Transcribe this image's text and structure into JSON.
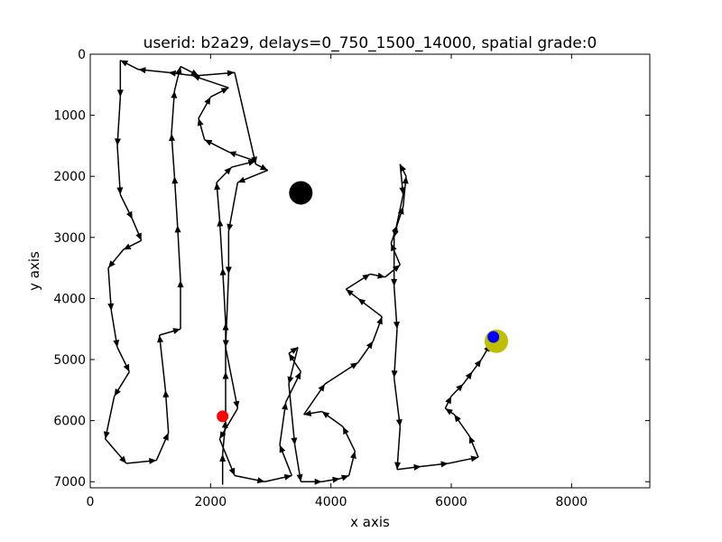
{
  "chart_data": {
    "type": "scatter",
    "title": "userid: b2a29, delays=0_750_1500_14000, spatial grade:0",
    "xlabel": "x axis",
    "ylabel": "y axis",
    "xlim": [
      0,
      9300
    ],
    "ylim": [
      0,
      7100
    ],
    "y_inverted": true,
    "grid": false,
    "x_ticks": [
      0,
      2000,
      4000,
      6000,
      8000
    ],
    "y_ticks": [
      0,
      1000,
      2000,
      3000,
      4000,
      5000,
      6000,
      7000
    ],
    "trajectory_color": "#000000",
    "trajectory": [
      [
        2200,
        7050
      ],
      [
        2200,
        6550
      ],
      [
        2250,
        6000
      ],
      [
        2250,
        5200
      ],
      [
        2250,
        4400
      ],
      [
        2200,
        3500
      ],
      [
        2150,
        2700
      ],
      [
        2100,
        2100
      ],
      [
        2350,
        1850
      ],
      [
        2750,
        1750
      ],
      [
        2300,
        1600
      ],
      [
        1900,
        1400
      ],
      [
        1800,
        1050
      ],
      [
        2000,
        700
      ],
      [
        2300,
        550
      ],
      [
        1700,
        350
      ],
      [
        1300,
        300
      ],
      [
        800,
        250
      ],
      [
        500,
        100
      ],
      [
        500,
        700
      ],
      [
        450,
        1500
      ],
      [
        500,
        2300
      ],
      [
        700,
        2700
      ],
      [
        850,
        3050
      ],
      [
        550,
        3200
      ],
      [
        300,
        3500
      ],
      [
        350,
        4200
      ],
      [
        450,
        4800
      ],
      [
        650,
        5200
      ],
      [
        400,
        5600
      ],
      [
        250,
        6300
      ],
      [
        600,
        6700
      ],
      [
        1100,
        6650
      ],
      [
        1300,
        6200
      ],
      [
        1250,
        5500
      ],
      [
        1150,
        4600
      ],
      [
        1500,
        4500
      ],
      [
        1500,
        3700
      ],
      [
        1450,
        2800
      ],
      [
        1400,
        2000
      ],
      [
        1350,
        1300
      ],
      [
        1400,
        600
      ],
      [
        1500,
        200
      ],
      [
        1800,
        350
      ],
      [
        2400,
        300
      ],
      [
        2750,
        1800
      ],
      [
        2950,
        1900
      ],
      [
        2450,
        2100
      ],
      [
        2300,
        2900
      ],
      [
        2300,
        3600
      ],
      [
        2250,
        4800
      ],
      [
        2450,
        5800
      ],
      [
        2150,
        6300
      ],
      [
        2400,
        6900
      ],
      [
        2900,
        7000
      ],
      [
        3350,
        6900
      ],
      [
        3150,
        6400
      ],
      [
        3250,
        5700
      ],
      [
        3500,
        5200
      ],
      [
        3300,
        4900
      ],
      [
        3450,
        4800
      ],
      [
        3300,
        5400
      ],
      [
        3400,
        6400
      ],
      [
        3500,
        7000
      ],
      [
        3850,
        7000
      ],
      [
        4150,
        6950
      ],
      [
        4300,
        6900
      ],
      [
        4400,
        6500
      ],
      [
        4200,
        6100
      ],
      [
        3850,
        5850
      ],
      [
        3550,
        5900
      ],
      [
        3900,
        5400
      ],
      [
        4450,
        5050
      ],
      [
        4700,
        4700
      ],
      [
        4850,
        4300
      ],
      [
        4450,
        4000
      ],
      [
        4250,
        3850
      ],
      [
        4650,
        3600
      ],
      [
        4900,
        3650
      ],
      [
        5150,
        3450
      ],
      [
        5000,
        3100
      ],
      [
        5100,
        2800
      ],
      [
        5200,
        2500
      ],
      [
        5250,
        2000
      ],
      [
        5150,
        1800
      ],
      [
        5200,
        2300
      ],
      [
        5050,
        3000
      ],
      [
        5050,
        3800
      ],
      [
        5100,
        4500
      ],
      [
        5050,
        5300
      ],
      [
        5150,
        6100
      ],
      [
        5100,
        6800
      ],
      [
        5500,
        6750
      ],
      [
        5950,
        6700
      ],
      [
        6450,
        6600
      ],
      [
        6300,
        6250
      ],
      [
        6050,
        5900
      ],
      [
        5900,
        5800
      ],
      [
        6000,
        5600
      ],
      [
        6200,
        5400
      ],
      [
        6350,
        5200
      ],
      [
        6500,
        5000
      ],
      [
        6650,
        4750
      ]
    ],
    "markers": [
      {
        "label": "start",
        "x": 2200,
        "y": 5930,
        "color": "#ff0000",
        "size": "small"
      },
      {
        "label": "end",
        "x": 6700,
        "y": 4630,
        "color": "#0000ff",
        "size": "small"
      },
      {
        "label": "target",
        "x": 6750,
        "y": 4700,
        "color": "#bfbf00",
        "size": "large"
      },
      {
        "label": "landmark",
        "x": 3500,
        "y": 2270,
        "color": "#000000",
        "size": "large"
      }
    ]
  }
}
